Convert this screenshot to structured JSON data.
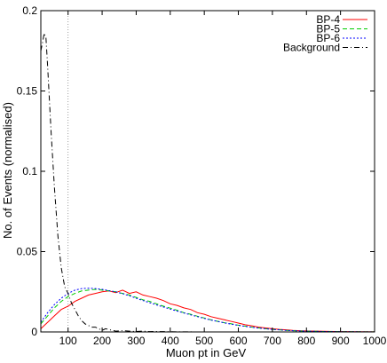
{
  "chart_data": {
    "type": "line",
    "title": "",
    "xlabel": "Muon pt in GeV",
    "ylabel": "No. of Events (normalised)",
    "xlim": [
      20,
      1000
    ],
    "ylim": [
      0,
      0.2
    ],
    "x_ticks": [
      100,
      200,
      300,
      400,
      500,
      600,
      700,
      800,
      900,
      1000
    ],
    "x_tick_labels": [
      "100",
      "200",
      "300",
      "400",
      "500",
      "600",
      "700",
      "800",
      "900",
      "1000"
    ],
    "y_ticks": [
      0,
      0.05,
      0.1,
      0.15,
      0.2
    ],
    "y_tick_labels": [
      "0",
      "0.05",
      "0.1",
      "0.15",
      "0.2"
    ],
    "grid": false,
    "legend_position": "top-right",
    "reference_line": {
      "x": 100,
      "style": "dotted"
    },
    "series": [
      {
        "name": "BP-4",
        "color": "#ff0000",
        "dash": "solid",
        "x": [
          20,
          40,
          60,
          80,
          100,
          120,
          140,
          160,
          180,
          200,
          220,
          240,
          260,
          280,
          300,
          320,
          340,
          360,
          380,
          400,
          420,
          440,
          460,
          480,
          500,
          520,
          540,
          560,
          580,
          600,
          620,
          640,
          660,
          680,
          700,
          720,
          740,
          760,
          780,
          800,
          850,
          900,
          950,
          1000
        ],
        "values": [
          0.002,
          0.006,
          0.01,
          0.014,
          0.016,
          0.019,
          0.021,
          0.023,
          0.024,
          0.025,
          0.0255,
          0.0245,
          0.026,
          0.024,
          0.025,
          0.023,
          0.022,
          0.021,
          0.0195,
          0.0175,
          0.0165,
          0.015,
          0.014,
          0.012,
          0.011,
          0.0095,
          0.0085,
          0.0075,
          0.0065,
          0.0055,
          0.0045,
          0.0038,
          0.003,
          0.0025,
          0.002,
          0.0016,
          0.0013,
          0.001,
          0.0008,
          0.0006,
          0.0004,
          0.0002,
          0.0001,
          5e-05
        ]
      },
      {
        "name": "BP-5",
        "color": "#00cc00",
        "dash": "dash",
        "x": [
          20,
          40,
          60,
          80,
          100,
          120,
          140,
          160,
          180,
          200,
          220,
          240,
          260,
          280,
          300,
          320,
          340,
          360,
          380,
          400,
          420,
          440,
          460,
          480,
          500,
          520,
          540,
          560,
          580,
          600,
          620,
          640,
          660,
          680,
          700,
          720,
          740,
          760,
          780,
          800,
          850,
          900,
          950,
          1000
        ],
        "values": [
          0.005,
          0.01,
          0.015,
          0.019,
          0.022,
          0.024,
          0.0255,
          0.026,
          0.0265,
          0.026,
          0.0255,
          0.025,
          0.024,
          0.023,
          0.0215,
          0.02,
          0.019,
          0.0175,
          0.016,
          0.0148,
          0.0135,
          0.012,
          0.011,
          0.0098,
          0.0087,
          0.0075,
          0.0066,
          0.0057,
          0.005,
          0.0042,
          0.0036,
          0.003,
          0.0025,
          0.002,
          0.0016,
          0.0013,
          0.001,
          0.0008,
          0.0006,
          0.0005,
          0.0003,
          0.00015,
          0.0001,
          5e-05
        ]
      },
      {
        "name": "BP-6",
        "color": "#0000ff",
        "dash": "dot",
        "x": [
          20,
          40,
          60,
          80,
          100,
          120,
          140,
          160,
          180,
          200,
          220,
          240,
          260,
          280,
          300,
          320,
          340,
          360,
          380,
          400,
          420,
          440,
          460,
          480,
          500,
          520,
          540,
          560,
          580,
          600,
          620,
          640,
          660,
          680,
          700,
          720,
          740,
          760,
          780,
          800,
          850,
          900,
          950,
          1000
        ],
        "values": [
          0.006,
          0.012,
          0.017,
          0.021,
          0.024,
          0.026,
          0.027,
          0.0272,
          0.027,
          0.0265,
          0.0257,
          0.025,
          0.0238,
          0.0225,
          0.021,
          0.0195,
          0.0182,
          0.0168,
          0.0155,
          0.0142,
          0.013,
          0.0118,
          0.0106,
          0.0095,
          0.0084,
          0.0074,
          0.0065,
          0.0056,
          0.0048,
          0.0041,
          0.0035,
          0.0029,
          0.0024,
          0.002,
          0.0016,
          0.0013,
          0.001,
          0.0008,
          0.0006,
          0.0005,
          0.0003,
          0.00015,
          0.0001,
          5e-05
        ]
      },
      {
        "name": "Background",
        "color": "#000000",
        "dash": "dashdot",
        "x": [
          20,
          25,
          30,
          35,
          40,
          50,
          60,
          70,
          80,
          90,
          100,
          110,
          120,
          130,
          140,
          150,
          160,
          170,
          180,
          190,
          200,
          210,
          220,
          230,
          240,
          260,
          280,
          300,
          320,
          340,
          360,
          400,
          450,
          500
        ],
        "values": [
          0.175,
          0.18,
          0.186,
          0.183,
          0.165,
          0.125,
          0.09,
          0.06,
          0.04,
          0.028,
          0.024,
          0.018,
          0.014,
          0.01,
          0.007,
          0.005,
          0.004,
          0.003,
          0.003,
          0.002,
          0.001,
          0.002,
          0.0015,
          0.001,
          0.0005,
          0.0008,
          0.0005,
          0.0003,
          0.0005,
          0.0002,
          0.0003,
          0.0001,
          5e-05,
          0.0
        ]
      }
    ]
  }
}
